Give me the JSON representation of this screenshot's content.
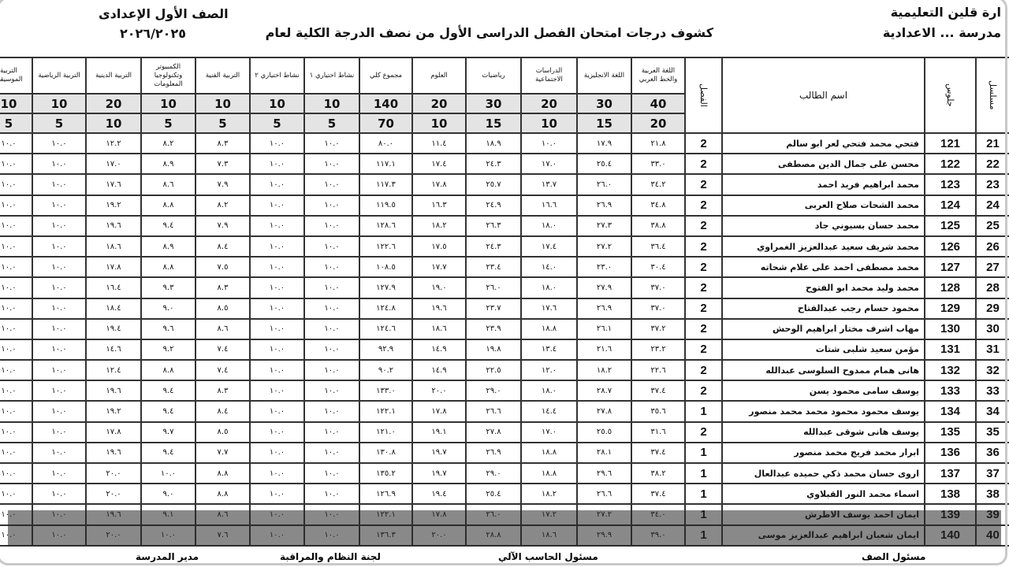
{
  "header": {
    "admin": "ارة قلين التعليمية",
    "school": "مدرسة ... الاعدادية",
    "title": "كشوف درجات امتحان الفصل الدراسى الأول من نصف الدرجة الكلية لعام",
    "grade": "الصف الأول الإعدادى",
    "year": "٢٠٢٦/٢٠٢٥"
  },
  "columns": {
    "serial": "مسلسل",
    "seat": "جلوس",
    "name": "اسم الطالب",
    "class": "الفصل",
    "subjects": [
      {
        "label": "اللغة العربية والخط العربي",
        "max": "40",
        "half": "20"
      },
      {
        "label": "اللغة الانجليزية",
        "max": "30",
        "half": "15"
      },
      {
        "label": "الدراسات الاجتماعية",
        "max": "20",
        "half": "10"
      },
      {
        "label": "رياضيات",
        "max": "30",
        "half": "15"
      },
      {
        "label": "العلوم",
        "max": "20",
        "half": "10"
      },
      {
        "label": "مجموع كلي",
        "max": "140",
        "half": "70"
      },
      {
        "label": "نشاط اختياري ١",
        "max": "10",
        "half": "5"
      },
      {
        "label": "نشاط اختياري ٢",
        "max": "10",
        "half": "5"
      },
      {
        "label": "التربية الفنية",
        "max": "10",
        "half": "5"
      },
      {
        "label": "الكمبيوتر وتكنولوجيا المعلومات",
        "max": "10",
        "half": "5"
      },
      {
        "label": "التربية الدينية",
        "max": "20",
        "half": "10"
      },
      {
        "label": "التربية الرياضية",
        "max": "10",
        "half": "5"
      },
      {
        "label": "التربية الموسيقية",
        "max": "10",
        "half": "5"
      }
    ]
  },
  "rows": [
    {
      "serial": "21",
      "seat": "121",
      "name": "فتحي محمد فتحي لعر ابو سالم",
      "class": "2",
      "scores": [
        "٢١.٨",
        "١٧.٩",
        "١٠.٠",
        "١٨.٩",
        "١١.٤",
        "٨٠.٠",
        "١٠.٠",
        "١٠.٠",
        "٨.٣",
        "٨.٢",
        "١٢.٢",
        "١٠.٠",
        "١٠.٠"
      ]
    },
    {
      "serial": "22",
      "seat": "122",
      "name": "محسن على جمال الدين مصطفى",
      "class": "2",
      "scores": [
        "٣٣.٠",
        "٢٥.٤",
        "١٧.٠",
        "٢٤.٣",
        "١٧.٤",
        "١١٧.١",
        "١٠.٠",
        "١٠.٠",
        "٧.٣",
        "٨.٩",
        "١٧.٠",
        "١٠.٠",
        "١٠.٠"
      ]
    },
    {
      "serial": "23",
      "seat": "123",
      "name": "محمد ابراهيم فريد احمد",
      "class": "2",
      "scores": [
        "٣٤.٢",
        "٢٦.٠",
        "١٣.٧",
        "٢٥.٧",
        "١٧.٨",
        "١١٧.٣",
        "١٠.٠",
        "١٠.٠",
        "٧.٩",
        "٨.٦",
        "١٧.٦",
        "١٠.٠",
        "١٠.٠"
      ]
    },
    {
      "serial": "24",
      "seat": "124",
      "name": "محمد الشحات صلاح العربى",
      "class": "2",
      "scores": [
        "٣٤.٨",
        "٢٦.٩",
        "١٦.٦",
        "٢٤.٩",
        "١٦.٣",
        "١١٩.٥",
        "١٠.٠",
        "١٠.٠",
        "٨.٢",
        "٨.٨",
        "١٩.٢",
        "١٠.٠",
        "١٠.٠"
      ]
    },
    {
      "serial": "25",
      "seat": "125",
      "name": "محمد حسان بسيوني جاد",
      "class": "2",
      "scores": [
        "٣٨.٨",
        "٢٧.٣",
        "١٨.٠",
        "٢٦.٣",
        "١٨.٢",
        "١٢٨.٦",
        "١٠.٠",
        "١٠.٠",
        "٧.٩",
        "٩.٤",
        "١٩.٦",
        "١٠.٠",
        "١٠.٠"
      ]
    },
    {
      "serial": "26",
      "seat": "126",
      "name": "محمد شريف سعيد عبدالعزيز الغمراوي",
      "class": "2",
      "scores": [
        "٣٦.٤",
        "٢٧.٢",
        "١٧.٤",
        "٢٤.٣",
        "١٧.٥",
        "١٢٢.٦",
        "١٠.٠",
        "١٠.٠",
        "٨.٤",
        "٨.٩",
        "١٨.٦",
        "١٠.٠",
        "١٠.٠"
      ]
    },
    {
      "serial": "27",
      "seat": "127",
      "name": "محمد مصطفى احمد على علام شحاته",
      "class": "2",
      "scores": [
        "٣٠.٤",
        "٢٣.٠",
        "١٤.٠",
        "٢٣.٤",
        "١٧.٧",
        "١٠٨.٥",
        "١٠.٠",
        "١٠.٠",
        "٧.٥",
        "٨.٨",
        "١٧.٨",
        "١٠.٠",
        "١٠.٠"
      ]
    },
    {
      "serial": "28",
      "seat": "128",
      "name": "محمد وليد محمد ابو الفتوح",
      "class": "2",
      "scores": [
        "٣٧.٠",
        "٢٧.٩",
        "١٨.٠",
        "٢٦.٠",
        "١٩.٠",
        "١٢٧.٩",
        "١٠.٠",
        "١٠.٠",
        "٨.٣",
        "٩.٣",
        "١٦.٤",
        "١٠.٠",
        "١٠.٠"
      ]
    },
    {
      "serial": "29",
      "seat": "129",
      "name": "محمود حسام رجب عبدالفتاح",
      "class": "2",
      "scores": [
        "٣٧.٠",
        "٢٦.٩",
        "١٧.٦",
        "٢٣.٧",
        "١٩.٦",
        "١٢٤.٨",
        "١٠.٠",
        "١٠.٠",
        "٨.٥",
        "٩.٠",
        "١٨.٤",
        "١٠.٠",
        "١٠.٠"
      ]
    },
    {
      "serial": "30",
      "seat": "130",
      "name": "مهاب اشرف مختار ابراهيم الوحش",
      "class": "2",
      "scores": [
        "٣٧.٢",
        "٢٦.١",
        "١٨.٨",
        "٢٣.٩",
        "١٨.٦",
        "١٢٤.٦",
        "١٠.٠",
        "١٠.٠",
        "٨.٦",
        "٩.٦",
        "١٩.٤",
        "١٠.٠",
        "١٠.٠"
      ]
    },
    {
      "serial": "31",
      "seat": "131",
      "name": "مؤمن سعيد شلبى شتات",
      "class": "2",
      "scores": [
        "٢٣.٢",
        "٢١.٦",
        "١٣.٤",
        "١٩.٨",
        "١٤.٩",
        "٩٢.٩",
        "١٠.٠",
        "١٠.٠",
        "٧.٤",
        "٩.٢",
        "١٤.٦",
        "١٠.٠",
        "١٠.٠"
      ]
    },
    {
      "serial": "32",
      "seat": "132",
      "name": "هانى همام ممدوح السلوسى عبدالله",
      "class": "2",
      "scores": [
        "٢٢.٦",
        "١٨.٢",
        "١٢.٠",
        "٢٢.٥",
        "١٤.٩",
        "٩٠.٢",
        "١٠.٠",
        "١٠.٠",
        "٧.٤",
        "٨.٨",
        "١٢.٤",
        "١٠.٠",
        "١٠.٠"
      ]
    },
    {
      "serial": "33",
      "seat": "133",
      "name": "يوسف سامى محمود يسن",
      "class": "2",
      "scores": [
        "٣٧.٤",
        "٢٨.٧",
        "١٨.٠",
        "٢٩.٠",
        "٢٠.٠",
        "١٣٣.٠",
        "١٠.٠",
        "١٠.٠",
        "٨.٣",
        "٩.٤",
        "١٩.٦",
        "١٠.٠",
        "١٠.٠"
      ]
    },
    {
      "serial": "34",
      "seat": "134",
      "name": "يوسف محمود محمود محمد محمد منصور",
      "class": "1",
      "scores": [
        "٣٥.٦",
        "٢٧.٨",
        "١٤.٤",
        "٢٦.٦",
        "١٧.٨",
        "١٢٢.١",
        "١٠.٠",
        "١٠.٠",
        "٨.٤",
        "٩.٤",
        "١٩.٢",
        "١٠.٠",
        "١٠.٠"
      ]
    },
    {
      "serial": "35",
      "seat": "135",
      "name": "يوسف هانى شوقى عبدالله",
      "class": "2",
      "scores": [
        "٣١.٦",
        "٢٥.٥",
        "١٧.٠",
        "٢٧.٨",
        "١٩.١",
        "١٢١.٠",
        "١٠.٠",
        "١٠.٠",
        "٨.٥",
        "٩.٧",
        "١٧.٨",
        "١٠.٠",
        "١٠.٠"
      ]
    },
    {
      "serial": "36",
      "seat": "136",
      "name": "ابرار محمد فريج محمد منصور",
      "class": "1",
      "scores": [
        "٣٧.٤",
        "٢٨.١",
        "١٨.٨",
        "٢٦.٩",
        "١٩.٧",
        "١٣٠.٨",
        "١٠.٠",
        "١٠.٠",
        "٧.٧",
        "٩.٤",
        "١٩.٦",
        "١٠.٠",
        "١٠.٠"
      ]
    },
    {
      "serial": "37",
      "seat": "137",
      "name": "اروى حسان محمد ذكي حميده عبدالعال",
      "class": "1",
      "scores": [
        "٣٨.٢",
        "٢٩.٦",
        "١٨.٨",
        "٢٩.٠",
        "١٩.٧",
        "١٣٥.٢",
        "١٠.٠",
        "١٠.٠",
        "٨.٨",
        "١٠.٠",
        "٢٠.٠",
        "١٠.٠",
        "١٠.٠"
      ]
    },
    {
      "serial": "38",
      "seat": "138",
      "name": "اسماء محمد النور القبلاوي",
      "class": "1",
      "scores": [
        "٣٧.٤",
        "٢٦.٦",
        "١٨.٢",
        "٢٥.٤",
        "١٩.٤",
        "١٢٦.٩",
        "١٠.٠",
        "١٠.٠",
        "٨.٨",
        "٩.٠",
        "٢٠.٠",
        "١٠.٠",
        "١٠.٠"
      ]
    },
    {
      "serial": "39",
      "seat": "139",
      "name": "ايمان احمد يوسف الاطرش",
      "class": "1",
      "scores": [
        "٣٤.٠",
        "٢٧.٢",
        "١٧.٢",
        "٢٦.٠",
        "١٧.٨",
        "١٢٢.١",
        "١٠.٠",
        "١٠.٠",
        "٨.٦",
        "٩.١",
        "١٩.٦",
        "١٠.٠",
        "١٠.٠"
      ]
    },
    {
      "serial": "40",
      "seat": "140",
      "name": "ايمان شعبان ابراهيم عبدالعزيز موسى",
      "class": "1",
      "scores": [
        "٣٩.٠",
        "٢٩.٩",
        "١٨.٦",
        "٢٨.٨",
        "٢٠.٠",
        "١٣٦.٣",
        "١٠.٠",
        "١٠.٠",
        "٧.٦",
        "١٠.٠",
        "٢٠.٠",
        "١٠.٠",
        "١٠.٠"
      ]
    }
  ],
  "footer": {
    "class_supervisor": "مسئول الصف",
    "computer_supervisor": "مسئول الحاسب الآلي",
    "exam_committee": "لجنة النظام والمراقبة",
    "principal": "مدير المدرسة"
  }
}
